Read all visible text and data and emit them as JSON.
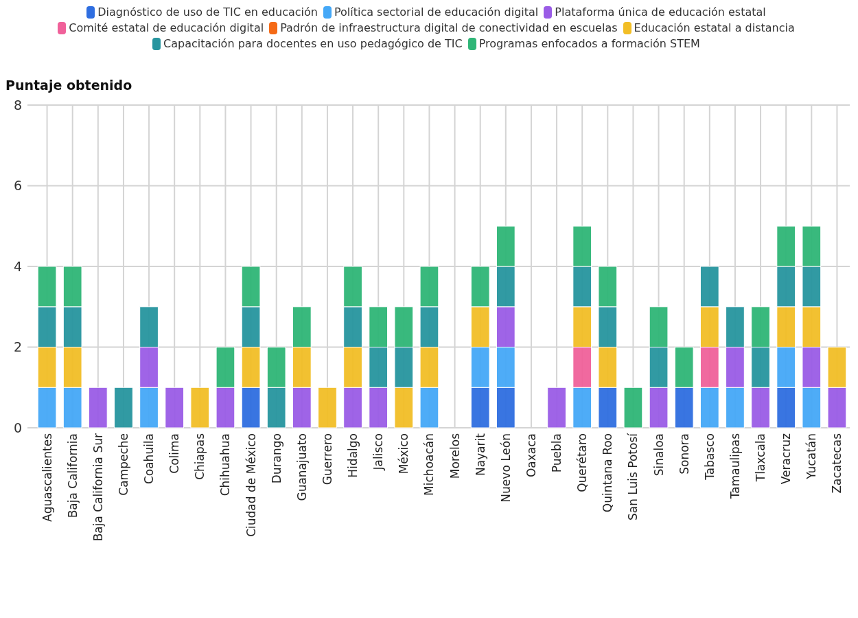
{
  "chart_data": {
    "type": "bar",
    "stacked": true,
    "ylabel": "Puntaje obtenido",
    "ylim": [
      0,
      8
    ],
    "yticks": [
      0,
      2,
      4,
      6,
      8
    ],
    "grid": true,
    "legend": "top",
    "categories": [
      "Aguascalientes",
      "Baja California",
      "Baja California Sur",
      "Campeche",
      "Coahuila",
      "Colima",
      "Chiapas",
      "Chihuahua",
      "Ciudad de México",
      "Durango",
      "Guanajuato",
      "Guerrero",
      "Hidalgo",
      "Jalisco",
      "México",
      "Michoacán",
      "Morelos",
      "Nayarit",
      "Nuevo León",
      "Oaxaca",
      "Puebla",
      "Querétaro",
      "Quintana Roo",
      "San Luis Potosí",
      "Sinaloa",
      "Sonora",
      "Tabasco",
      "Tamaulipas",
      "Tlaxcala",
      "Veracruz",
      "Yucatán",
      "Zacatecas"
    ],
    "series": [
      {
        "name": "Diagnóstico de uso de TIC en educación",
        "color": "#2f6ee0",
        "values": [
          0,
          0,
          0,
          0,
          0,
          0,
          0,
          0,
          1,
          0,
          0,
          0,
          0,
          0,
          0,
          0,
          0,
          1,
          1,
          0,
          0,
          0,
          1,
          0,
          0,
          1,
          0,
          0,
          0,
          1,
          0,
          0
        ]
      },
      {
        "name": "Política sectorial de educación digital",
        "color": "#45a8f7",
        "values": [
          1,
          1,
          0,
          0,
          1,
          0,
          0,
          0,
          0,
          0,
          0,
          0,
          0,
          0,
          0,
          1,
          0,
          1,
          1,
          0,
          0,
          1,
          0,
          0,
          0,
          0,
          1,
          1,
          0,
          1,
          1,
          0
        ]
      },
      {
        "name": "Plataforma única de educación estatal",
        "color": "#9a5ce6",
        "values": [
          0,
          0,
          1,
          0,
          1,
          1,
          0,
          1,
          0,
          0,
          1,
          0,
          1,
          1,
          0,
          0,
          0,
          0,
          1,
          0,
          1,
          0,
          0,
          0,
          1,
          0,
          0,
          1,
          1,
          0,
          1,
          1
        ]
      },
      {
        "name": "Comité estatal de educación digital",
        "color": "#f0619a",
        "values": [
          0,
          0,
          0,
          0,
          0,
          0,
          0,
          0,
          0,
          0,
          0,
          0,
          0,
          0,
          0,
          0,
          0,
          0,
          0,
          0,
          0,
          1,
          0,
          0,
          0,
          0,
          1,
          0,
          0,
          0,
          0,
          0
        ]
      },
      {
        "name": "Padrón de infraestructura digital de conectividad en escuelas",
        "color": "#f56a16",
        "values": [
          0,
          0,
          0,
          0,
          0,
          0,
          0,
          0,
          0,
          0,
          0,
          0,
          0,
          0,
          0,
          0,
          0,
          0,
          0,
          0,
          0,
          0,
          0,
          0,
          0,
          0,
          0,
          0,
          0,
          0,
          0,
          0
        ]
      },
      {
        "name": "Educación estatal a distancia",
        "color": "#f2be26",
        "values": [
          1,
          1,
          0,
          0,
          0,
          0,
          1,
          0,
          1,
          0,
          1,
          1,
          1,
          0,
          1,
          1,
          0,
          1,
          0,
          0,
          0,
          1,
          1,
          0,
          0,
          0,
          1,
          0,
          0,
          1,
          1,
          1
        ]
      },
      {
        "name": "Capacitación para docentes en uso pedagógico de TIC",
        "color": "#27959f",
        "values": [
          1,
          1,
          0,
          1,
          1,
          0,
          0,
          0,
          1,
          1,
          0,
          0,
          1,
          1,
          1,
          1,
          0,
          0,
          1,
          0,
          0,
          1,
          1,
          0,
          1,
          0,
          1,
          1,
          1,
          1,
          1,
          0
        ]
      },
      {
        "name": "Programas enfocados a formación STEM",
        "color": "#2fb677",
        "values": [
          1,
          1,
          0,
          0,
          0,
          0,
          0,
          1,
          1,
          1,
          1,
          0,
          1,
          1,
          1,
          1,
          0,
          1,
          1,
          0,
          0,
          1,
          1,
          1,
          1,
          1,
          0,
          0,
          1,
          1,
          1,
          0
        ]
      }
    ]
  }
}
